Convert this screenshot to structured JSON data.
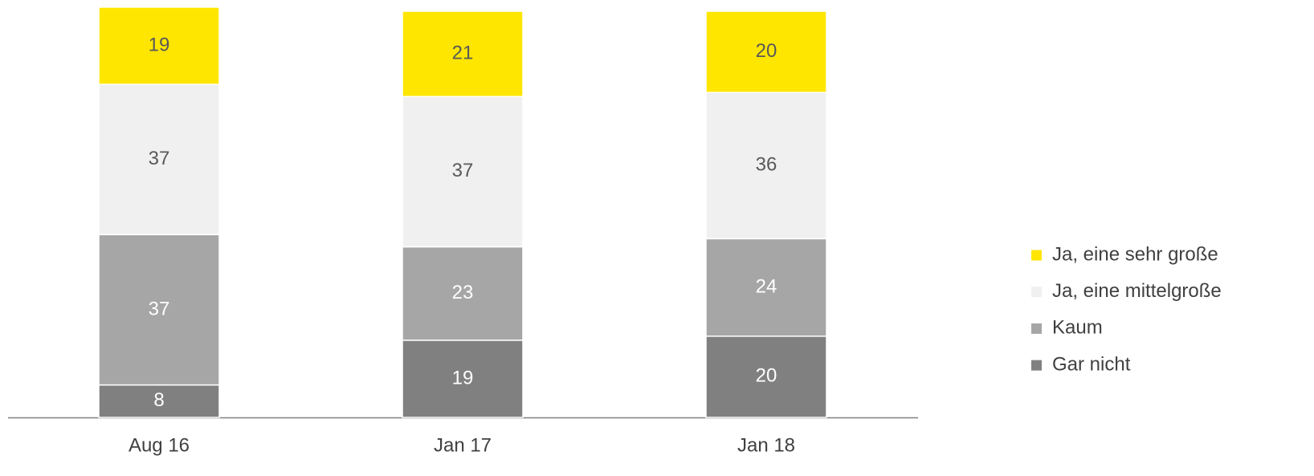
{
  "chart_data": {
    "type": "stacked_bar",
    "categories": [
      "Aug 16",
      "Jan 17",
      "Jan 18"
    ],
    "series": [
      {
        "name": "Gar nicht",
        "color": "#808080",
        "values": [
          8,
          19,
          20
        ]
      },
      {
        "name": "Kaum",
        "color": "#a6a6a6",
        "values": [
          37,
          23,
          24
        ]
      },
      {
        "name": "Ja, eine mittelgroße",
        "color": "#f0f0f0",
        "values": [
          37,
          37,
          36
        ]
      },
      {
        "name": "Ja, eine sehr große",
        "color": "#ffe600",
        "values": [
          19,
          21,
          20
        ]
      }
    ],
    "legend": "right"
  }
}
